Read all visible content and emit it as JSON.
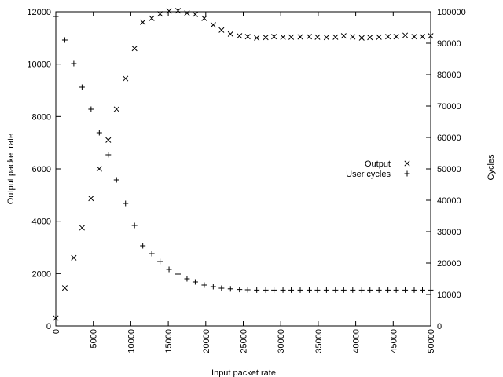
{
  "chart_data": {
    "type": "scatter",
    "xlabel": "Input packet rate",
    "ylabel": "Output packet rate",
    "y2label": "Cycles",
    "xlim": [
      0,
      50000
    ],
    "ylim": [
      0,
      12000
    ],
    "y2lim": [
      0,
      100000
    ],
    "x_ticks": [
      "0",
      "5000",
      "10000",
      "15000",
      "20000",
      "25000",
      "30000",
      "35000",
      "40000",
      "45000",
      "50000"
    ],
    "y_ticks": [
      "0",
      "2000",
      "4000",
      "6000",
      "8000",
      "10000",
      "12000"
    ],
    "y2_ticks": [
      "0",
      "10000",
      "20000",
      "30000",
      "40000",
      "50000",
      "60000",
      "70000",
      "80000",
      "90000",
      "100000"
    ],
    "grid": false,
    "legend_position": "right-middle",
    "series": [
      {
        "name": "Output",
        "marker": "x",
        "axis": "y",
        "color": "#000000",
        "points": [
          [
            0,
            300
          ],
          [
            1200,
            1450
          ],
          [
            2400,
            2600
          ],
          [
            3500,
            3750
          ],
          [
            4700,
            4870
          ],
          [
            5800,
            6000
          ],
          [
            7000,
            7100
          ],
          [
            8100,
            8280
          ],
          [
            9300,
            9450
          ],
          [
            10500,
            10600
          ],
          [
            11600,
            11600
          ],
          [
            12800,
            11750
          ],
          [
            13900,
            11920
          ],
          [
            15100,
            12030
          ],
          [
            16300,
            12040
          ],
          [
            17500,
            11950
          ],
          [
            18600,
            11900
          ],
          [
            19800,
            11750
          ],
          [
            21000,
            11500
          ],
          [
            22100,
            11300
          ],
          [
            23300,
            11150
          ],
          [
            24500,
            11080
          ],
          [
            25600,
            11050
          ],
          [
            26800,
            11000
          ],
          [
            28000,
            11020
          ],
          [
            29100,
            11050
          ],
          [
            30300,
            11030
          ],
          [
            31400,
            11030
          ],
          [
            32600,
            11040
          ],
          [
            33800,
            11050
          ],
          [
            34900,
            11030
          ],
          [
            36100,
            11020
          ],
          [
            37300,
            11030
          ],
          [
            38400,
            11080
          ],
          [
            39600,
            11040
          ],
          [
            40800,
            11000
          ],
          [
            41900,
            11020
          ],
          [
            43100,
            11030
          ],
          [
            44300,
            11050
          ],
          [
            45400,
            11050
          ],
          [
            46600,
            11100
          ],
          [
            47800,
            11050
          ],
          [
            48900,
            11050
          ],
          [
            50000,
            11080
          ]
        ]
      },
      {
        "name": "User cycles",
        "marker": "+",
        "axis": "y2",
        "color": "#000000",
        "points": [
          [
            0,
            98500
          ],
          [
            1200,
            91000
          ],
          [
            2400,
            83500
          ],
          [
            3500,
            76000
          ],
          [
            4700,
            69000
          ],
          [
            5800,
            61500
          ],
          [
            7000,
            54500
          ],
          [
            8100,
            46500
          ],
          [
            9300,
            39000
          ],
          [
            10500,
            32000
          ],
          [
            11600,
            25500
          ],
          [
            12800,
            23000
          ],
          [
            13900,
            20500
          ],
          [
            15100,
            18000
          ],
          [
            16300,
            16500
          ],
          [
            17500,
            15000
          ],
          [
            18600,
            14000
          ],
          [
            19800,
            13000
          ],
          [
            21000,
            12500
          ],
          [
            22100,
            12000
          ],
          [
            23300,
            11800
          ],
          [
            24500,
            11600
          ],
          [
            25600,
            11500
          ],
          [
            26800,
            11400
          ],
          [
            28000,
            11400
          ],
          [
            29100,
            11400
          ],
          [
            30300,
            11400
          ],
          [
            31400,
            11400
          ],
          [
            32600,
            11400
          ],
          [
            33800,
            11400
          ],
          [
            34900,
            11400
          ],
          [
            36100,
            11400
          ],
          [
            37300,
            11400
          ],
          [
            38400,
            11400
          ],
          [
            39600,
            11400
          ],
          [
            40800,
            11400
          ],
          [
            41900,
            11400
          ],
          [
            43100,
            11400
          ],
          [
            44300,
            11400
          ],
          [
            45400,
            11400
          ],
          [
            46600,
            11400
          ],
          [
            47800,
            11400
          ],
          [
            48900,
            11400
          ],
          [
            50000,
            11400
          ]
        ]
      }
    ]
  }
}
